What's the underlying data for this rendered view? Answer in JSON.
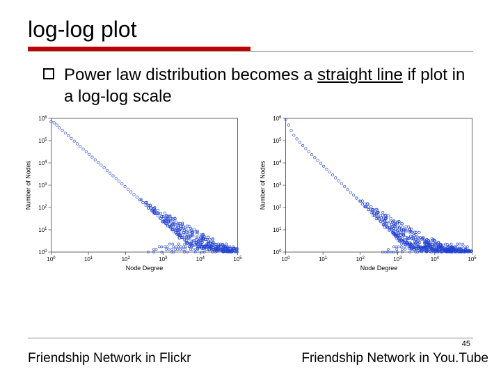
{
  "title": "log-log plot",
  "bullet": {
    "pre": "Power law distribution becomes a ",
    "underlined": "straight line",
    "post": " if plot in a log-log scale"
  },
  "page_number": "45",
  "charts": [
    {
      "type": "scatter",
      "caption": "Friendship Network in Flickr",
      "xlabel": "Node Degree",
      "ylabel": "Number of Nodes",
      "xscale": "log",
      "yscale": "log",
      "xlim": [
        1,
        100000
      ],
      "ylim": [
        1,
        1000000
      ],
      "xticks": [
        1,
        10,
        100,
        1000,
        10000,
        100000
      ],
      "yticks": [
        1,
        10,
        100,
        1000,
        10000,
        100000,
        1000000
      ],
      "tick_labels_x": [
        "10^0",
        "10^1",
        "10^2",
        "10^3",
        "10^4",
        "10^5"
      ],
      "tick_labels_y": [
        "10^0",
        "10^1",
        "10^2",
        "10^3",
        "10^4",
        "10^5",
        "10^6"
      ],
      "marker_color": "#2040d0",
      "marker_shape": "circle-open",
      "marker_size": 3.5,
      "background_color": "#ffffff",
      "spread_bottom": 1.2,
      "points_loglog": [
        [
          0.0,
          5.85
        ],
        [
          0.08,
          5.8
        ],
        [
          0.15,
          5.7
        ],
        [
          0.22,
          5.58
        ],
        [
          0.3,
          5.46
        ],
        [
          0.38,
          5.34
        ],
        [
          0.46,
          5.22
        ],
        [
          0.54,
          5.1
        ],
        [
          0.62,
          4.98
        ],
        [
          0.7,
          4.86
        ],
        [
          0.78,
          4.74
        ],
        [
          0.86,
          4.62
        ],
        [
          0.94,
          4.5
        ],
        [
          1.02,
          4.38
        ],
        [
          1.1,
          4.26
        ],
        [
          1.18,
          4.14
        ],
        [
          1.26,
          4.02
        ],
        [
          1.34,
          3.9
        ],
        [
          1.42,
          3.78
        ],
        [
          1.5,
          3.66
        ],
        [
          1.58,
          3.54
        ],
        [
          1.66,
          3.42
        ],
        [
          1.74,
          3.3
        ],
        [
          1.82,
          3.18
        ],
        [
          1.9,
          3.06
        ],
        [
          1.98,
          2.94
        ],
        [
          2.06,
          2.82
        ],
        [
          2.14,
          2.7
        ],
        [
          2.22,
          2.58
        ],
        [
          2.3,
          2.46
        ],
        [
          2.38,
          2.34
        ],
        [
          2.46,
          2.22
        ],
        [
          2.54,
          2.1
        ],
        [
          2.62,
          1.98
        ],
        [
          2.7,
          1.86
        ],
        [
          2.78,
          1.74
        ],
        [
          2.86,
          1.62
        ],
        [
          2.94,
          1.5
        ],
        [
          3.02,
          1.38
        ],
        [
          3.1,
          1.26
        ],
        [
          3.18,
          1.14
        ],
        [
          3.26,
          1.02
        ],
        [
          3.34,
          0.9
        ],
        [
          3.42,
          0.78
        ],
        [
          3.5,
          0.66
        ],
        [
          3.58,
          0.54
        ],
        [
          3.66,
          0.42
        ],
        [
          3.8,
          0.3
        ],
        [
          3.95,
          0.22
        ],
        [
          4.1,
          0.15
        ],
        [
          4.3,
          0.1
        ],
        [
          4.5,
          0.05
        ],
        [
          4.7,
          0.02
        ]
      ]
    },
    {
      "type": "scatter",
      "caption": "Friendship Network in You.Tube",
      "xlabel": "Node Degree",
      "ylabel": "Number of Nodes",
      "xscale": "log",
      "yscale": "log",
      "xlim": [
        1,
        100000
      ],
      "ylim": [
        1,
        1000000
      ],
      "xticks": [
        1,
        10,
        100,
        1000,
        10000,
        100000
      ],
      "yticks": [
        1,
        10,
        100,
        1000,
        10000,
        100000,
        1000000
      ],
      "tick_labels_x": [
        "10^0",
        "10^1",
        "10^2",
        "10^3",
        "10^4",
        "10^5"
      ],
      "tick_labels_y": [
        "10^0",
        "10^1",
        "10^2",
        "10^3",
        "10^4",
        "10^5",
        "10^6"
      ],
      "marker_color": "#2040d0",
      "marker_shape": "circle-open",
      "marker_size": 3.5,
      "background_color": "#ffffff",
      "spread_bottom": 1.4,
      "points_loglog": [
        [
          0.0,
          5.95
        ],
        [
          0.08,
          5.7
        ],
        [
          0.15,
          5.45
        ],
        [
          0.22,
          5.25
        ],
        [
          0.3,
          5.08
        ],
        [
          0.38,
          4.92
        ],
        [
          0.46,
          4.78
        ],
        [
          0.54,
          4.64
        ],
        [
          0.62,
          4.5
        ],
        [
          0.7,
          4.37
        ],
        [
          0.78,
          4.24
        ],
        [
          0.86,
          4.11
        ],
        [
          0.94,
          3.98
        ],
        [
          1.02,
          3.85
        ],
        [
          1.1,
          3.72
        ],
        [
          1.18,
          3.59
        ],
        [
          1.26,
          3.46
        ],
        [
          1.34,
          3.33
        ],
        [
          1.42,
          3.2
        ],
        [
          1.5,
          3.07
        ],
        [
          1.58,
          2.94
        ],
        [
          1.66,
          2.81
        ],
        [
          1.74,
          2.68
        ],
        [
          1.82,
          2.55
        ],
        [
          1.9,
          2.42
        ],
        [
          1.98,
          2.29
        ],
        [
          2.06,
          2.16
        ],
        [
          2.14,
          2.03
        ],
        [
          2.22,
          1.9
        ],
        [
          2.3,
          1.77
        ],
        [
          2.38,
          1.64
        ],
        [
          2.46,
          1.51
        ],
        [
          2.54,
          1.38
        ],
        [
          2.62,
          1.25
        ],
        [
          2.7,
          1.12
        ],
        [
          2.78,
          1.0
        ],
        [
          2.86,
          0.88
        ],
        [
          2.94,
          0.76
        ],
        [
          3.02,
          0.64
        ],
        [
          3.1,
          0.54
        ],
        [
          3.18,
          0.44
        ],
        [
          3.26,
          0.36
        ],
        [
          3.34,
          0.28
        ],
        [
          3.42,
          0.22
        ],
        [
          3.5,
          0.16
        ],
        [
          3.6,
          0.12
        ],
        [
          3.75,
          0.08
        ],
        [
          3.9,
          0.05
        ],
        [
          4.1,
          0.03
        ],
        [
          4.3,
          0.02
        ],
        [
          4.55,
          0.03
        ]
      ]
    }
  ]
}
